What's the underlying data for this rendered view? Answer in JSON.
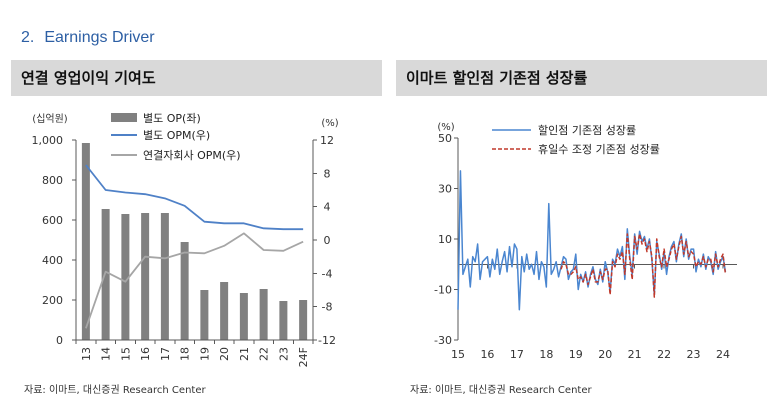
{
  "section": {
    "number": "2.",
    "title": "Earnings Driver"
  },
  "colors": {
    "section_title": "#2d5fa4",
    "header_bg": "#d9d9d9"
  },
  "left_panel": {
    "source": "자료: 이마트, 대신증권 Research Center"
  },
  "right_panel": {
    "source": "자료: 이마트, 대신증권 Research Center"
  },
  "chart_data": [
    {
      "type": "bar",
      "title": "연결 영업이익 기여도",
      "categories": [
        "13",
        "14",
        "15",
        "16",
        "17",
        "18",
        "19",
        "20",
        "21",
        "22",
        "23",
        "24F"
      ],
      "y_left_label": "(십억원)",
      "y_right_label": "(%)",
      "ylim_left": [
        0,
        1000
      ],
      "ylim_right": [
        -12,
        12
      ],
      "yticks_left": [
        "0",
        "200",
        "400",
        "600",
        "800",
        "1,000"
      ],
      "yticks_right": [
        "-12",
        "-8",
        "-4",
        "0",
        "4",
        "8",
        "12"
      ],
      "grid": false,
      "legend_position": "top-left",
      "series": [
        {
          "name": "별도 OP(좌)",
          "kind": "bar",
          "axis": "left",
          "color": "#808080",
          "values": [
            985,
            655,
            630,
            635,
            635,
            490,
            250,
            290,
            235,
            255,
            195,
            200
          ]
        },
        {
          "name": "별도 OPM(우)",
          "kind": "line",
          "axis": "right",
          "color": "#4f81c7",
          "values": [
            9.0,
            6.0,
            5.7,
            5.5,
            5.0,
            4.1,
            2.2,
            2.0,
            2.0,
            1.4,
            1.3,
            1.3
          ]
        },
        {
          "name": "연결자회사 OPM(우)",
          "kind": "line",
          "axis": "right",
          "color": "#a6a6a6",
          "values": [
            -10.6,
            -3.8,
            -5.0,
            -2.0,
            -2.2,
            -1.5,
            -1.6,
            -0.7,
            0.8,
            -1.2,
            -1.3,
            -0.2
          ]
        }
      ]
    },
    {
      "type": "line",
      "title": "이마트 할인점 기존점 성장률",
      "y_label": "(%)",
      "ylim": [
        -30,
        50
      ],
      "yticks": [
        "50",
        "30",
        "10",
        "-10",
        "-30"
      ],
      "xticks": [
        "15",
        "16",
        "17",
        "18",
        "19",
        "20",
        "21",
        "22",
        "23",
        "24"
      ],
      "grid": false,
      "legend_position": "top",
      "x": [
        "2015-01",
        "2015-02",
        "2015-03",
        "2015-04",
        "2015-05",
        "2015-06",
        "2015-07",
        "2015-08",
        "2015-09",
        "2015-10",
        "2015-11",
        "2015-12",
        "2016-01",
        "2016-02",
        "2016-03",
        "2016-04",
        "2016-05",
        "2016-06",
        "2016-07",
        "2016-08",
        "2016-09",
        "2016-10",
        "2016-11",
        "2016-12",
        "2017-01",
        "2017-02",
        "2017-03",
        "2017-04",
        "2017-05",
        "2017-06",
        "2017-07",
        "2017-08",
        "2017-09",
        "2017-10",
        "2017-11",
        "2017-12",
        "2018-01",
        "2018-02",
        "2018-03",
        "2018-04",
        "2018-05",
        "2018-06",
        "2018-07",
        "2018-08",
        "2018-09",
        "2018-10",
        "2018-11",
        "2018-12",
        "2019-01",
        "2019-02",
        "2019-03",
        "2019-04",
        "2019-05",
        "2019-06",
        "2019-07",
        "2019-08",
        "2019-09",
        "2019-10",
        "2019-11",
        "2019-12",
        "2020-01",
        "2020-02",
        "2020-03",
        "2020-04",
        "2020-05",
        "2020-06",
        "2020-07",
        "2020-08",
        "2020-09",
        "2020-10",
        "2020-11",
        "2020-12",
        "2021-01",
        "2021-02",
        "2021-03",
        "2021-04",
        "2021-05",
        "2021-06",
        "2021-07",
        "2021-08",
        "2021-09",
        "2021-10",
        "2021-11",
        "2021-12",
        "2022-01",
        "2022-02",
        "2022-03",
        "2022-04",
        "2022-05",
        "2022-06",
        "2022-07",
        "2022-08",
        "2022-09",
        "2022-10",
        "2022-11",
        "2022-12",
        "2023-01",
        "2023-02",
        "2023-03",
        "2023-04",
        "2023-05",
        "2023-06",
        "2023-07",
        "2023-08",
        "2023-09",
        "2023-10",
        "2023-11",
        "2023-12",
        "2024-01",
        "2024-02"
      ],
      "series": [
        {
          "name": "할인점 기존점 성장률",
          "style": "solid",
          "color": "#4a86d0",
          "values": [
            -18,
            37,
            -4,
            -1,
            2,
            -9,
            3,
            1,
            8,
            -6,
            1,
            2,
            3,
            -5,
            2,
            -2,
            6,
            -4,
            1,
            5,
            -3,
            7,
            -1,
            8,
            6,
            -18,
            3,
            -3,
            4,
            -2,
            0,
            -4,
            5,
            -6,
            1,
            -1,
            -9,
            24,
            -4,
            -2,
            1,
            -5,
            -1,
            3,
            2,
            -6,
            -3,
            -2,
            4,
            -10,
            -4,
            -7,
            -3,
            -9,
            -4,
            -1,
            -6,
            -8,
            -2,
            -7,
            1,
            -3,
            -11,
            2,
            0,
            6,
            3,
            7,
            -6,
            14,
            3,
            -4,
            12,
            4,
            13,
            9,
            11,
            6,
            10,
            2,
            -12,
            9,
            4,
            -2,
            5,
            -4,
            3,
            7,
            9,
            1,
            8,
            12,
            3,
            10,
            2,
            6,
            6,
            -3,
            2,
            -1,
            4,
            -2,
            3,
            1,
            -4,
            5,
            -2,
            1,
            3,
            -3
          ]
        },
        {
          "name": "휴일수 조정 기존점 성장률",
          "style": "dashed",
          "color": "#c0392b",
          "values": [
            null,
            null,
            null,
            null,
            null,
            null,
            null,
            null,
            null,
            null,
            null,
            null,
            null,
            null,
            null,
            null,
            null,
            null,
            null,
            null,
            null,
            null,
            null,
            null,
            null,
            null,
            null,
            null,
            null,
            null,
            null,
            null,
            null,
            null,
            null,
            null,
            null,
            null,
            null,
            null,
            null,
            null,
            -2,
            1,
            0,
            -4,
            -4,
            -3,
            -1,
            -6,
            -5,
            -7,
            -4,
            -8,
            -5,
            -2,
            -7,
            -7,
            -3,
            -6,
            -2,
            -2,
            -12,
            1,
            -1,
            4,
            2,
            5,
            -4,
            12,
            2,
            -6,
            11,
            6,
            12,
            8,
            10,
            5,
            9,
            3,
            -13,
            10,
            3,
            -1,
            6,
            -1,
            2,
            6,
            8,
            2,
            7,
            11,
            4,
            9,
            3,
            5,
            4,
            -1,
            1,
            0,
            3,
            -1,
            2,
            2,
            -3,
            4,
            -1,
            2,
            4,
            -4
          ]
        }
      ]
    }
  ]
}
